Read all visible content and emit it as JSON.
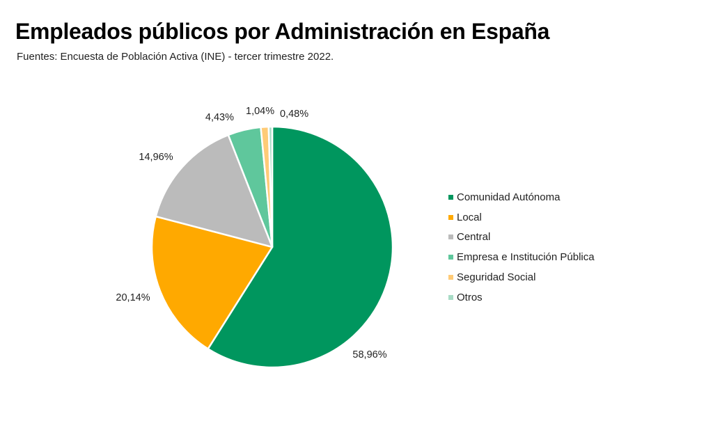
{
  "header": {
    "title": "Empleados públicos por Administración en España",
    "subtitle": "Fuentes: Encuesta de Población Activa (INE) - tercer trimestre 2022."
  },
  "chart_data": {
    "type": "pie",
    "title": "Empleados públicos por Administración en España",
    "subtitle": "Fuentes: Encuesta de Población Activa (INE) - tercer trimestre 2022.",
    "legend_position": "right",
    "start": "top",
    "direction": "clockwise",
    "slices": [
      {
        "name": "Comunidad Autónoma",
        "value": 58.96,
        "label": "58,96%",
        "color": "#00965e"
      },
      {
        "name": "Local",
        "value": 20.14,
        "label": "20,14%",
        "color": "#ffa900"
      },
      {
        "name": "Central",
        "value": 14.96,
        "label": "14,96%",
        "color": "#bbbbbb"
      },
      {
        "name": "Empresa e Institución Pública",
        "value": 4.43,
        "label": "4,43%",
        "color": "#5fc79c"
      },
      {
        "name": "Seguridad Social",
        "value": 1.04,
        "label": "1,04%",
        "color": "#ffcb77"
      },
      {
        "name": "Otros",
        "value": 0.48,
        "label": "0,48%",
        "color": "#a8dcc6"
      }
    ]
  }
}
